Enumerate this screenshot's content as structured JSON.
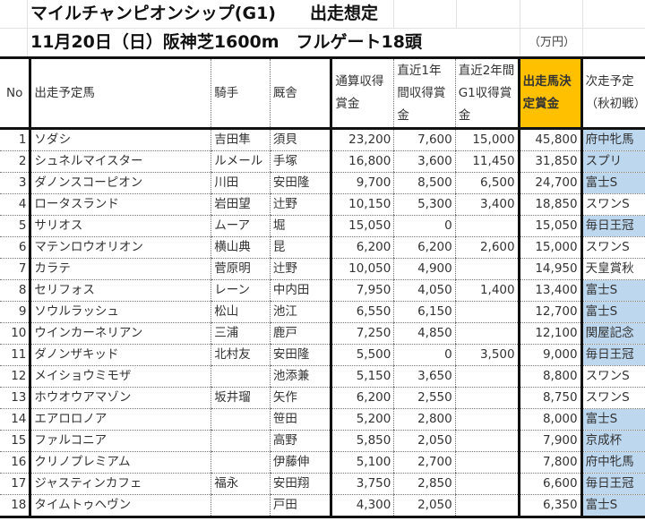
{
  "title": {
    "line1": "マイルチャンピオンシップ(G1)　　出走想定",
    "line2": "11月20日（日）阪神芝1600m　フルゲート18頭",
    "unit": "（万円）"
  },
  "table": {
    "headers": {
      "no": "No",
      "horse": "出走予定馬",
      "jockey": "騎手",
      "stable": "厩舎",
      "total": "通算収得賞金",
      "recent1y": "直近1年間収得賞金",
      "recent2y_g1": "直近2年間G1収得賞金",
      "decision": "出走馬決定賞金",
      "next_race": "次走予定（秋初戦）"
    },
    "colors": {
      "decision_header_bg": "#ffc000",
      "next_race_highlight_bg": "#bdd7ee"
    },
    "rows": [
      {
        "no": "1",
        "horse": "ソダシ",
        "jockey": "吉田隼",
        "stable": "須貝",
        "total": "23,200",
        "recent1y": "7,600",
        "recent2y_g1": "15,000",
        "decision": "45,800",
        "next_race": "府中牝馬",
        "highlight": true
      },
      {
        "no": "2",
        "horse": "シュネルマイスター",
        "jockey": "ルメール",
        "stable": "手塚",
        "total": "16,800",
        "recent1y": "3,600",
        "recent2y_g1": "11,450",
        "decision": "31,850",
        "next_race": "スプリ",
        "highlight": true
      },
      {
        "no": "3",
        "horse": "ダノンスコーピオン",
        "jockey": "川田",
        "stable": "安田隆",
        "total": "9,700",
        "recent1y": "8,500",
        "recent2y_g1": "6,500",
        "decision": "24,700",
        "next_race": "富士S",
        "highlight": true
      },
      {
        "no": "4",
        "horse": "ロータスランド",
        "jockey": "岩田望",
        "stable": "辻野",
        "total": "10,150",
        "recent1y": "5,300",
        "recent2y_g1": "3,400",
        "decision": "18,850",
        "next_race": "スワンS",
        "highlight": false
      },
      {
        "no": "5",
        "horse": "サリオス",
        "jockey": "ムーア",
        "stable": "堀",
        "total": "15,050",
        "recent1y": "0",
        "recent2y_g1": "",
        "decision": "15,050",
        "next_race": "毎日王冠",
        "highlight": true
      },
      {
        "no": "6",
        "horse": "マテンロウオリオン",
        "jockey": "横山典",
        "stable": "昆",
        "total": "6,200",
        "recent1y": "6,200",
        "recent2y_g1": "2,600",
        "decision": "15,000",
        "next_race": "スワンS",
        "highlight": false
      },
      {
        "no": "7",
        "horse": "カラテ",
        "jockey": "菅原明",
        "stable": "辻野",
        "total": "10,050",
        "recent1y": "4,900",
        "recent2y_g1": "",
        "decision": "14,950",
        "next_race": "天皇賞秋",
        "highlight": false
      },
      {
        "no": "8",
        "horse": "セリフォス",
        "jockey": "レーン",
        "stable": "中内田",
        "total": "7,950",
        "recent1y": "4,050",
        "recent2y_g1": "1,400",
        "decision": "13,400",
        "next_race": "富士S",
        "highlight": true
      },
      {
        "no": "9",
        "horse": "ソウルラッシュ",
        "jockey": "松山",
        "stable": "池江",
        "total": "6,550",
        "recent1y": "6,150",
        "recent2y_g1": "",
        "decision": "12,700",
        "next_race": "富士S",
        "highlight": true
      },
      {
        "no": "10",
        "horse": "ウインカーネリアン",
        "jockey": "三浦",
        "stable": "鹿戸",
        "total": "7,250",
        "recent1y": "4,850",
        "recent2y_g1": "",
        "decision": "12,100",
        "next_race": "関屋記念",
        "highlight": true
      },
      {
        "no": "11",
        "horse": "ダノンザキッド",
        "jockey": "北村友",
        "stable": "安田隆",
        "total": "5,500",
        "recent1y": "0",
        "recent2y_g1": "3,500",
        "decision": "9,000",
        "next_race": "毎日王冠",
        "highlight": true
      },
      {
        "no": "12",
        "horse": "メイショウミモザ",
        "jockey": "",
        "stable": "池添兼",
        "total": "5,150",
        "recent1y": "3,650",
        "recent2y_g1": "",
        "decision": "8,800",
        "next_race": "スワンS",
        "highlight": false
      },
      {
        "no": "13",
        "horse": "ホウオウアマゾン",
        "jockey": "坂井瑠",
        "stable": "矢作",
        "total": "6,200",
        "recent1y": "2,550",
        "recent2y_g1": "",
        "decision": "8,750",
        "next_race": "スワンS",
        "highlight": false
      },
      {
        "no": "14",
        "horse": "エアロロノア",
        "jockey": "",
        "stable": "笹田",
        "total": "5,200",
        "recent1y": "2,800",
        "recent2y_g1": "",
        "decision": "8,000",
        "next_race": "富士S",
        "highlight": true
      },
      {
        "no": "15",
        "horse": "ファルコニア",
        "jockey": "",
        "stable": "高野",
        "total": "5,850",
        "recent1y": "2,050",
        "recent2y_g1": "",
        "decision": "7,900",
        "next_race": "京成杯",
        "highlight": true
      },
      {
        "no": "16",
        "horse": "クリノプレミアム",
        "jockey": "",
        "stable": "伊藤伸",
        "total": "5,100",
        "recent1y": "2,700",
        "recent2y_g1": "",
        "decision": "7,800",
        "next_race": "府中牝馬",
        "highlight": true
      },
      {
        "no": "17",
        "horse": "ジャスティンカフェ",
        "jockey": "福永",
        "stable": "安田翔",
        "total": "3,750",
        "recent1y": "2,850",
        "recent2y_g1": "",
        "decision": "6,600",
        "next_race": "毎日王冠",
        "highlight": true
      },
      {
        "no": "18",
        "horse": "タイムトゥヘヴン",
        "jockey": "",
        "stable": "戸田",
        "total": "4,300",
        "recent1y": "2,050",
        "recent2y_g1": "",
        "decision": "6,350",
        "next_race": "富士S",
        "highlight": true
      }
    ]
  }
}
